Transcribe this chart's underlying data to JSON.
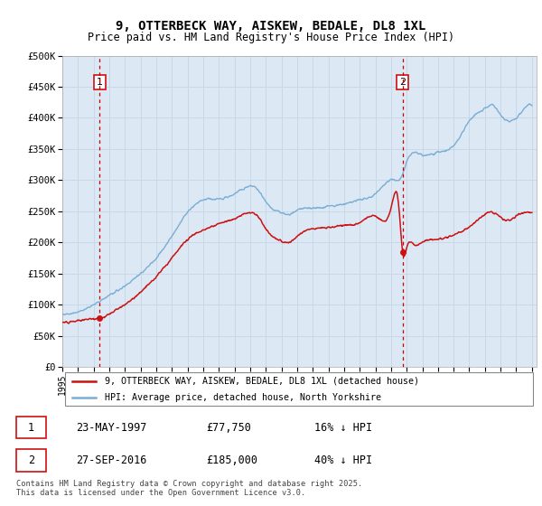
{
  "title_line1": "9, OTTERBECK WAY, AISKEW, BEDALE, DL8 1XL",
  "title_line2": "Price paid vs. HM Land Registry's House Price Index (HPI)",
  "plot_bg_color": "#dce9f5",
  "fig_bg_color": "#ffffff",
  "hpi_color": "#7aadd4",
  "price_color": "#cc1111",
  "dashed_line_color": "#cc0000",
  "transaction1_year": 1997.38,
  "transaction1_price": 77750,
  "transaction2_year": 2016.74,
  "transaction2_price": 185000,
  "transaction1_label": "1",
  "transaction2_label": "2",
  "legend_line1": "9, OTTERBECK WAY, AISKEW, BEDALE, DL8 1XL (detached house)",
  "legend_line2": "HPI: Average price, detached house, North Yorkshire",
  "table_row1": [
    "1",
    "23-MAY-1997",
    "£77,750",
    "16% ↓ HPI"
  ],
  "table_row2": [
    "2",
    "27-SEP-2016",
    "£185,000",
    "40% ↓ HPI"
  ],
  "footnote": "Contains HM Land Registry data © Crown copyright and database right 2025.\nThis data is licensed under the Open Government Licence v3.0.",
  "grid_color": "#c8d8e8",
  "ylim": [
    0,
    500000
  ],
  "yticks": [
    0,
    50000,
    100000,
    150000,
    200000,
    250000,
    300000,
    350000,
    400000,
    450000,
    500000
  ],
  "ytick_labels": [
    "£0",
    "£50K",
    "£100K",
    "£150K",
    "£200K",
    "£250K",
    "£300K",
    "£350K",
    "£400K",
    "£450K",
    "£500K"
  ]
}
